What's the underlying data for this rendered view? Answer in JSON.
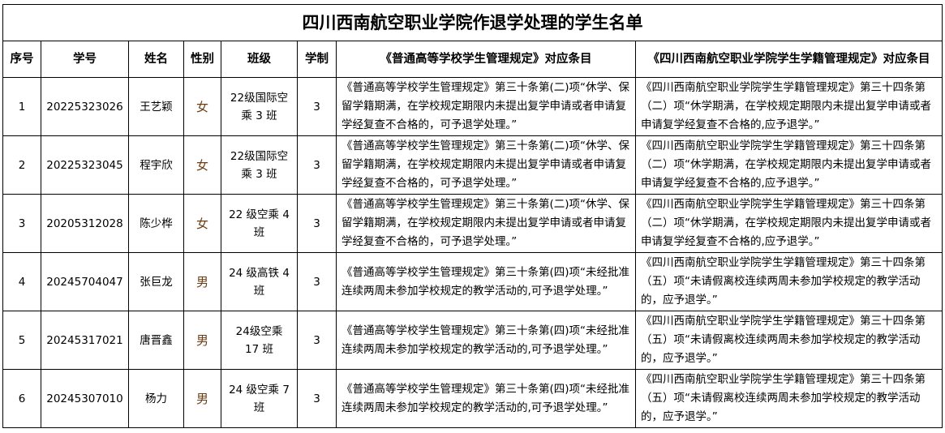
{
  "title": "四川西南航空职业学院作退学处理的学生名单",
  "headers": [
    "序号",
    "学号",
    "姓名",
    "性别",
    "班级",
    "学制",
    "《普通高等学校学生管理规定》对应条目",
    "《四川西南航空职业学院学生学籍管理规定》对应条目"
  ],
  "rows": [
    {
      "no": "1",
      "id": "20225323026",
      "name": "王艺颖",
      "gender": "女",
      "class": "22级国际空乘 3 班",
      "years": "3",
      "rule1": "《普通高等学校学生管理规定》第三十条第(二)项“休学、保留学籍期满，在学校规定期限内未提出复学申请或者申请复学经复查不合格的，可予退学处理。”",
      "rule2": "《四川西南航空职业学院学生学籍管理规定》第三十四条第（二）项“休学期满，在学校规定期限内未提出复学申请或者申请复学经复查不合格的,应予退学。”"
    },
    {
      "no": "2",
      "id": "20225323045",
      "name": "程宇欣",
      "gender": "女",
      "class": "22级国际空乘 3 班",
      "years": "3",
      "rule1": "《普通高等学校学生管理规定》第三十条第(二)项“休学、保留学籍期满，在学校规定期限内未提出复学申请或者申请复学经复查不合格的，可予退学处理。”",
      "rule2": "《四川西南航空职业学院学生学籍管理规定》第三十四条第（二）项“休学期满，在学校规定期限内未提出复学申请或者申请复学经复查不合格的,应予退学。”"
    },
    {
      "no": "3",
      "id": "20205312028",
      "name": "陈少桦",
      "gender": "女",
      "class": "22 级空乘 4 班",
      "years": "3",
      "rule1": "《普通高等学校学生管理规定》第三十条第(二)项“休学、保留学籍期满，在学校规定期限内未提出复学申请或者申请复学经复查不合格的，可予退学处理。”",
      "rule2": "《四川西南航空职业学院学生学籍管理规定》第三十四条第（二）项“休学期满，在学校规定期限内未提出复学申请或者申请复学经复查不合格的,应予退学。”"
    },
    {
      "no": "4",
      "id": "20245704047",
      "name": "张巨龙",
      "gender": "男",
      "class": "24 级高铁 4 班",
      "years": "3",
      "rule1": "《普通高等学校学生管理规定》第三十条第(四)项“未经批准连续两周未参加学校规定的教学活动的,可予退学处理。”",
      "rule2": "《四川西南航空职业学院学生学籍管理规定》第三十四条第（五）项“未请假离校连续两周未参加学校规定的教学活动的，应予退学。”"
    },
    {
      "no": "5",
      "id": "20245317021",
      "name": "唐晋鑫",
      "gender": "男",
      "class": "24级空乘 17 班",
      "years": "3",
      "rule1": "《普通高等学校学生管理规定》第三十条第(四)项“未经批准连续两周未参加学校规定的教学活动的,可予退学处理。”",
      "rule2": "《四川西南航空职业学院学生学籍管理规定》第三十四条第（五）项“未请假离校连续两周未参加学校规定的教学活动的，应予退学。”"
    },
    {
      "no": "6",
      "id": "20245307010",
      "name": "杨力",
      "gender": "男",
      "class": "24 级空乘 7 班",
      "years": "3",
      "rule1": "《普通高等学校学生管理规定》第三十条第(四)项“未经批准连续两周未参加学校规定的教学活动的,可予退学处理。”",
      "rule2": "《四川西南航空职业学院学生学籍管理规定》第三十四条第（五）项“未请假离校连续两周未参加学校规定的教学活动的，应予退学。”"
    }
  ]
}
